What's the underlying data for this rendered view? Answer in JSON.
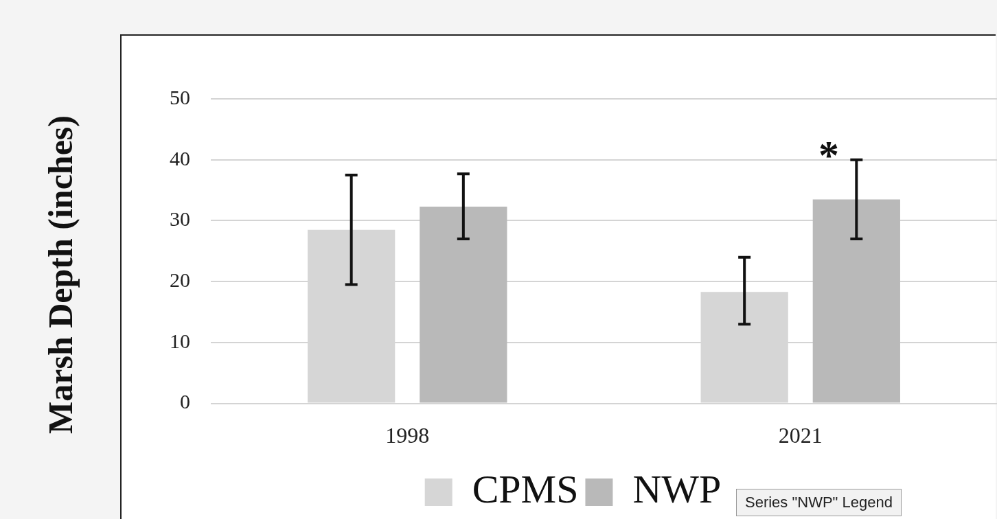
{
  "chart_data": {
    "type": "bar",
    "ylabel": "Marsh Depth (inches)",
    "categories": [
      "1998",
      "2021"
    ],
    "series": [
      {
        "name": "CPMS",
        "color": "#d6d6d6",
        "values": [
          28.5,
          18.3
        ],
        "errors": [
          [
            19.5,
            37.5
          ],
          [
            13,
            24
          ]
        ]
      },
      {
        "name": "NWP",
        "color": "#b9b9b9",
        "values": [
          32.3,
          33.5
        ],
        "errors": [
          [
            27,
            37.7
          ],
          [
            27,
            40
          ]
        ]
      }
    ],
    "ylim": [
      0,
      50
    ],
    "yticks": [
      0,
      10,
      20,
      30,
      40,
      50
    ],
    "grid": "y",
    "legend": "bottom",
    "annotations": [
      "*",
      "Series \"NWP\" Legend"
    ]
  }
}
